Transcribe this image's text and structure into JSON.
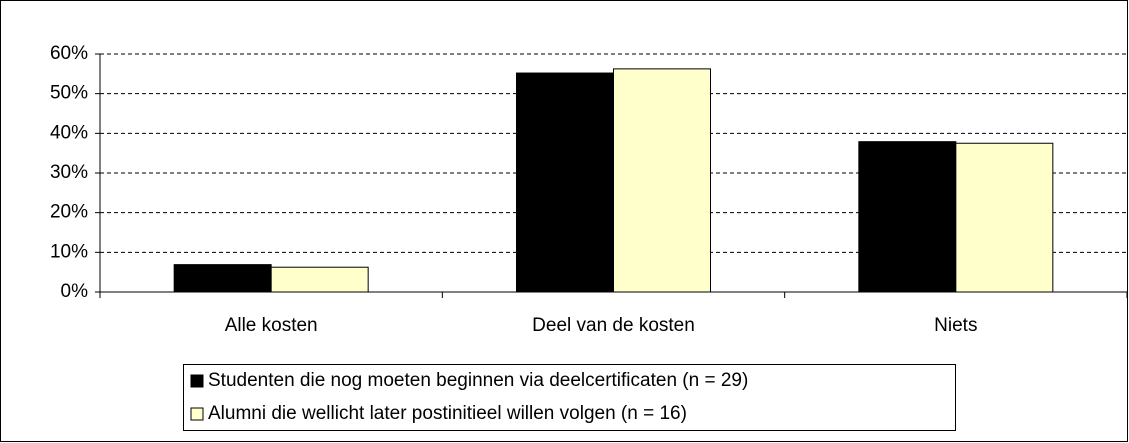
{
  "chart_data": {
    "type": "bar",
    "categories": [
      "Alle kosten",
      "Deel van de kosten",
      "Niets"
    ],
    "series": [
      {
        "name": "Studenten die nog moeten beginnen via deelcertificaten (n = 29)",
        "color": "#000000",
        "values": [
          6.9,
          55.2,
          37.9
        ]
      },
      {
        "name": "Alumni die wellicht later postinitieel willen volgen (n = 16)",
        "color": "#ffffcc",
        "values": [
          6.25,
          56.25,
          37.5
        ]
      }
    ],
    "ylim": [
      0,
      60
    ],
    "yticks": [
      {
        "value": 0,
        "label": "0%"
      },
      {
        "value": 10,
        "label": "10%"
      },
      {
        "value": 20,
        "label": "20%"
      },
      {
        "value": 30,
        "label": "30%"
      },
      {
        "value": 40,
        "label": "40%"
      },
      {
        "value": 50,
        "label": "50%"
      },
      {
        "value": 60,
        "label": "60%"
      }
    ],
    "grid": true,
    "legend": "bottom"
  }
}
